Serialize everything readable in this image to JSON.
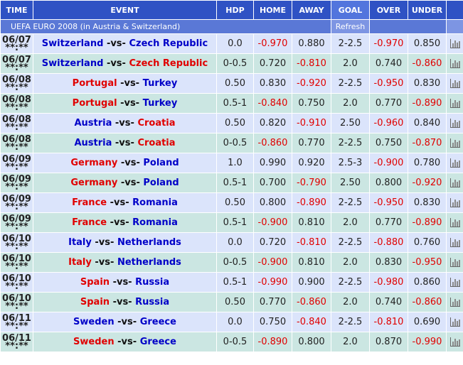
{
  "header": {
    "time": "TIME",
    "event": "EVENT",
    "hdp": "HDP",
    "home": "HOME",
    "away": "AWAY",
    "goal": "GOAL",
    "over": "OVER",
    "under": "UNDER"
  },
  "subheader": {
    "title": "UEFA EURO 2008 (in Austria & Switzerland)",
    "refresh": "Refresh"
  },
  "vs": "-vs-",
  "colors": {
    "red": "#e00000",
    "blue": "#0000c8"
  },
  "rows": [
    {
      "date": "06/07",
      "clock": "**:**",
      "home_team": "Switzerland",
      "home_color": "blue",
      "away_team": "Czech Republic",
      "away_color": "blue",
      "hdp": "0.0",
      "home": "-0.970",
      "away": "0.880",
      "goal": "2-2.5",
      "over": "-0.970",
      "under": "0.850"
    },
    {
      "date": "06/07",
      "clock": "**:**",
      "home_team": "Switzerland",
      "home_color": "blue",
      "away_team": "Czech Republic",
      "away_color": "red",
      "hdp": "0-0.5",
      "home": "0.720",
      "away": "-0.810",
      "goal": "2.0",
      "over": "0.740",
      "under": "-0.860"
    },
    {
      "date": "06/08",
      "clock": "**:**",
      "home_team": "Portugal",
      "home_color": "red",
      "away_team": "Turkey",
      "away_color": "blue",
      "hdp": "0.50",
      "home": "0.830",
      "away": "-0.920",
      "goal": "2-2.5",
      "over": "-0.950",
      "under": "0.830"
    },
    {
      "date": "06/08",
      "clock": "**:**",
      "home_team": "Portugal",
      "home_color": "red",
      "away_team": "Turkey",
      "away_color": "blue",
      "hdp": "0.5-1",
      "home": "-0.840",
      "away": "0.750",
      "goal": "2.0",
      "over": "0.770",
      "under": "-0.890"
    },
    {
      "date": "06/08",
      "clock": "**:**",
      "home_team": "Austria",
      "home_color": "blue",
      "away_team": "Croatia",
      "away_color": "red",
      "hdp": "0.50",
      "home": "0.820",
      "away": "-0.910",
      "goal": "2.50",
      "over": "-0.960",
      "under": "0.840"
    },
    {
      "date": "06/08",
      "clock": "**:**",
      "home_team": "Austria",
      "home_color": "blue",
      "away_team": "Croatia",
      "away_color": "red",
      "hdp": "0-0.5",
      "home": "-0.860",
      "away": "0.770",
      "goal": "2-2.5",
      "over": "0.750",
      "under": "-0.870"
    },
    {
      "date": "06/09",
      "clock": "**:**",
      "home_team": "Germany",
      "home_color": "red",
      "away_team": "Poland",
      "away_color": "blue",
      "hdp": "1.0",
      "home": "0.990",
      "away": "0.920",
      "goal": "2.5-3",
      "over": "-0.900",
      "under": "0.780"
    },
    {
      "date": "06/09",
      "clock": "**:**",
      "home_team": "Germany",
      "home_color": "red",
      "away_team": "Poland",
      "away_color": "blue",
      "hdp": "0.5-1",
      "home": "0.700",
      "away": "-0.790",
      "goal": "2.50",
      "over": "0.800",
      "under": "-0.920"
    },
    {
      "date": "06/09",
      "clock": "**:**",
      "home_team": "France",
      "home_color": "red",
      "away_team": "Romania",
      "away_color": "blue",
      "hdp": "0.50",
      "home": "0.800",
      "away": "-0.890",
      "goal": "2-2.5",
      "over": "-0.950",
      "under": "0.830"
    },
    {
      "date": "06/09",
      "clock": "**:**",
      "home_team": "France",
      "home_color": "red",
      "away_team": "Romania",
      "away_color": "blue",
      "hdp": "0.5-1",
      "home": "-0.900",
      "away": "0.810",
      "goal": "2.0",
      "over": "0.770",
      "under": "-0.890"
    },
    {
      "date": "06/10",
      "clock": "**:**",
      "home_team": "Italy",
      "home_color": "blue",
      "away_team": "Netherlands",
      "away_color": "blue",
      "hdp": "0.0",
      "home": "0.720",
      "away": "-0.810",
      "goal": "2-2.5",
      "over": "-0.880",
      "under": "0.760"
    },
    {
      "date": "06/10",
      "clock": "**:**",
      "home_team": "Italy",
      "home_color": "red",
      "away_team": "Netherlands",
      "away_color": "blue",
      "hdp": "0-0.5",
      "home": "-0.900",
      "away": "0.810",
      "goal": "2.0",
      "over": "0.830",
      "under": "-0.950"
    },
    {
      "date": "06/10",
      "clock": "**:**",
      "home_team": "Spain",
      "home_color": "red",
      "away_team": "Russia",
      "away_color": "blue",
      "hdp": "0.5-1",
      "home": "-0.990",
      "away": "0.900",
      "goal": "2-2.5",
      "over": "-0.980",
      "under": "0.860"
    },
    {
      "date": "06/10",
      "clock": "**:**",
      "home_team": "Spain",
      "home_color": "red",
      "away_team": "Russia",
      "away_color": "blue",
      "hdp": "0.50",
      "home": "0.770",
      "away": "-0.860",
      "goal": "2.0",
      "over": "0.740",
      "under": "-0.860"
    },
    {
      "date": "06/11",
      "clock": "**:**",
      "home_team": "Sweden",
      "home_color": "blue",
      "away_team": "Greece",
      "away_color": "blue",
      "hdp": "0.0",
      "home": "0.750",
      "away": "-0.840",
      "goal": "2-2.5",
      "over": "-0.810",
      "under": "0.690"
    },
    {
      "date": "06/11",
      "clock": "**:**",
      "home_team": "Sweden",
      "home_color": "red",
      "away_team": "Greece",
      "away_color": "blue",
      "hdp": "0-0.5",
      "home": "-0.890",
      "away": "0.800",
      "goal": "2.0",
      "over": "0.870",
      "under": "-0.990"
    }
  ]
}
